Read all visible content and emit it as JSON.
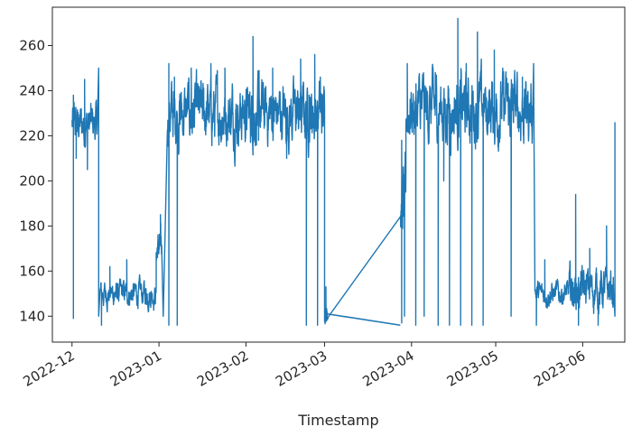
{
  "chart_data": {
    "type": "line",
    "title": "",
    "xlabel": "Timestamp",
    "ylabel": "",
    "x_axis_type": "date",
    "xlim": [
      "2022-11-24",
      "2023-06-16"
    ],
    "ylim": [
      128.5,
      277
    ],
    "yticks": [
      140,
      160,
      180,
      200,
      220,
      240,
      260
    ],
    "xticks": [
      {
        "date": "2022-12-01",
        "label": "2022-12"
      },
      {
        "date": "2023-01-01",
        "label": "2023-01"
      },
      {
        "date": "2023-02-01",
        "label": "2023-02"
      },
      {
        "date": "2023-03-01",
        "label": "2023-03"
      },
      {
        "date": "2023-04-01",
        "label": "2023-04"
      },
      {
        "date": "2023-05-01",
        "label": "2023-05"
      },
      {
        "date": "2023-06-01",
        "label": "2023-06"
      }
    ],
    "grid": false,
    "legend": "none",
    "line_color": "#1f77b4",
    "series": [
      {
        "segments": [
          {
            "start": "2022-12-01",
            "end": "2022-12-10",
            "low": 204,
            "high": 250,
            "base": 225
          },
          {
            "start": "2022-12-11",
            "end": "2022-12-31",
            "low": 138,
            "high": 165,
            "base": 150
          },
          {
            "start": "2022-12-31",
            "end": "2023-01-02",
            "low": 150,
            "high": 185,
            "base": 170
          },
          {
            "start": "2023-01-04",
            "end": "2023-03-01",
            "low": 198,
            "high": 264,
            "base": 230
          },
          {
            "start": "2023-03-01",
            "end": "2023-03-02",
            "low": 136,
            "high": 153,
            "base": 142
          },
          {
            "start": "2023-03-28",
            "end": "2023-03-30",
            "low": 140,
            "high": 218,
            "base": 190
          },
          {
            "start": "2023-03-30",
            "end": "2023-05-14",
            "low": 200,
            "high": 272,
            "base": 232
          },
          {
            "start": "2023-05-15",
            "end": "2023-05-27",
            "low": 140,
            "high": 165,
            "base": 150
          },
          {
            "start": "2023-05-27",
            "end": "2023-06-12",
            "low": 136,
            "high": 180,
            "base": 152
          }
        ],
        "points": [
          [
            "2022-12-01",
            139
          ],
          [
            "2022-12-01",
            238
          ],
          [
            "2022-12-02",
            210
          ],
          [
            "2022-12-05",
            245
          ],
          [
            "2022-12-06",
            205
          ],
          [
            "2022-12-10",
            250
          ],
          [
            "2022-12-10",
            140
          ],
          [
            "2022-12-11",
            136
          ],
          [
            "2022-12-14",
            162
          ],
          [
            "2022-12-20",
            165
          ],
          [
            "2022-12-28",
            150
          ],
          [
            "2023-01-01",
            185
          ],
          [
            "2023-01-02",
            140
          ],
          [
            "2023-01-04",
            252
          ],
          [
            "2023-01-04",
            136
          ],
          [
            "2023-01-06",
            246
          ],
          [
            "2023-01-07",
            136
          ],
          [
            "2023-01-08",
            225
          ],
          [
            "2023-01-12",
            250
          ],
          [
            "2023-01-19",
            252
          ],
          [
            "2023-01-24",
            250
          ],
          [
            "2023-02-03",
            264
          ],
          [
            "2023-02-05",
            218
          ],
          [
            "2023-02-10",
            250
          ],
          [
            "2023-02-15",
            210
          ],
          [
            "2023-02-20",
            254
          ],
          [
            "2023-02-22",
            136
          ],
          [
            "2023-02-23",
            238
          ],
          [
            "2023-02-25",
            256
          ],
          [
            "2023-02-26",
            136
          ],
          [
            "2023-02-27",
            246
          ],
          [
            "2023-03-01",
            144
          ],
          [
            "2023-03-01",
            153
          ],
          [
            "2023-03-02",
            140
          ],
          [
            "2023-03-28",
            137
          ],
          [
            "2023-03-28",
            218
          ],
          [
            "2023-03-29",
            140
          ],
          [
            "2023-03-30",
            252
          ],
          [
            "2023-04-02",
            136
          ],
          [
            "2023-04-05",
            140
          ],
          [
            "2023-04-06",
            228
          ],
          [
            "2023-04-09",
            248
          ],
          [
            "2023-04-10",
            136
          ],
          [
            "2023-04-12",
            200
          ],
          [
            "2023-04-14",
            136
          ],
          [
            "2023-04-17",
            272
          ],
          [
            "2023-04-18",
            136
          ],
          [
            "2023-04-20",
            252
          ],
          [
            "2023-04-22",
            136
          ],
          [
            "2023-04-24",
            266
          ],
          [
            "2023-04-26",
            136
          ],
          [
            "2023-04-30",
            258
          ],
          [
            "2023-05-03",
            250
          ],
          [
            "2023-05-06",
            140
          ],
          [
            "2023-05-10",
            246
          ],
          [
            "2023-05-14",
            252
          ],
          [
            "2023-05-15",
            136
          ],
          [
            "2023-05-18",
            165
          ],
          [
            "2023-05-24",
            152
          ],
          [
            "2023-05-29",
            194
          ],
          [
            "2023-05-30",
            136
          ],
          [
            "2023-06-03",
            170
          ],
          [
            "2023-06-06",
            136
          ],
          [
            "2023-06-09",
            180
          ],
          [
            "2023-06-12",
            140
          ],
          [
            "2023-06-12",
            226
          ]
        ],
        "connectors": [
          [
            "2023-03-02",
            141
          ],
          [
            "2023-03-28",
            136
          ]
        ]
      }
    ]
  }
}
